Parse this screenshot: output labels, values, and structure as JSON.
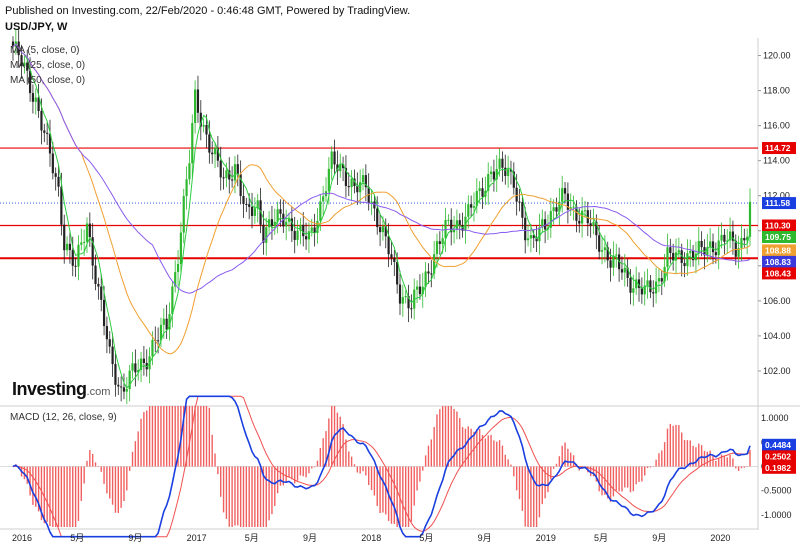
{
  "header": {
    "published": "Published on Investing.com, 22/Feb/2020 - 0:46:48 GMT, Powered by TradingView.",
    "symbol": "USD/JPY, W"
  },
  "legend": [
    {
      "label": "MA (5, close, 0)",
      "color": "#2ecc40"
    },
    {
      "label": "MA (25, close, 0)",
      "color": "#f0a030"
    },
    {
      "label": "MA (50, close, 0)",
      "color": "#8a5cf0"
    }
  ],
  "logo": {
    "brand": "Investing",
    "suffix": ".com"
  },
  "macd_label": "MACD (12, 26, close, 9)",
  "colors": {
    "up": "#2eb82e",
    "down": "#222222",
    "hline": "#e60000",
    "ma5": "#2ecc40",
    "ma25": "#f0a030",
    "ma50": "#8a5cf0",
    "macd": "#1a3fe0",
    "signal": "#f05050",
    "hist": "#f06060"
  },
  "chart_data": [
    {
      "type": "candlestick",
      "title": "USD/JPY, W",
      "ylim": [
        100,
        121
      ],
      "yticks": [
        "102.00",
        "104.00",
        "106.00",
        "108.00",
        "110.00",
        "112.00",
        "114.00",
        "116.00",
        "118.00",
        "120.00"
      ],
      "xticks": [
        "2016",
        "5月",
        "9月",
        "2017",
        "5月",
        "9月",
        "2018",
        "5月",
        "9月",
        "2019",
        "5月",
        "9月",
        "2020"
      ],
      "grid": false,
      "horizontal_lines": [
        114.72,
        110.3,
        108.43
      ],
      "price_tags": [
        {
          "text": "114.72",
          "value": 114.72,
          "color": "#e60000"
        },
        {
          "text": "111.58",
          "value": 111.58,
          "color": "#1a3fe0"
        },
        {
          "text": "110.30",
          "value": 110.3,
          "color": "#e60000"
        },
        {
          "text": "109.75",
          "value": 109.75,
          "color": "#2eb82e"
        },
        {
          "text": "108.88",
          "value": 108.88,
          "color": "#f0a030"
        },
        {
          "text": "108.83",
          "value": 108.83,
          "color": "#3a3adc"
        },
        {
          "text": "108.43",
          "value": 108.43,
          "color": "#e60000"
        }
      ],
      "close_anchors": [
        [
          0,
          120.5
        ],
        [
          4,
          119.2
        ],
        [
          8,
          117.5
        ],
        [
          12,
          114.8
        ],
        [
          16,
          112.3
        ],
        [
          18,
          109.5
        ],
        [
          22,
          107.8
        ],
        [
          26,
          110.5
        ],
        [
          30,
          106.5
        ],
        [
          34,
          102.8
        ],
        [
          38,
          100.9
        ],
        [
          42,
          101.8
        ],
        [
          46,
          102.5
        ],
        [
          50,
          103.8
        ],
        [
          54,
          104.5
        ],
        [
          58,
          108.8
        ],
        [
          60,
          111.5
        ],
        [
          62,
          114.0
        ],
        [
          64,
          117.5
        ],
        [
          66,
          116.5
        ],
        [
          70,
          114.5
        ],
        [
          74,
          112.8
        ],
        [
          78,
          113.8
        ],
        [
          82,
          110.8
        ],
        [
          86,
          111.5
        ],
        [
          88,
          110.0
        ],
        [
          92,
          110.5
        ],
        [
          96,
          110.8
        ],
        [
          100,
          109.8
        ],
        [
          104,
          109.5
        ],
        [
          108,
          111.5
        ],
        [
          112,
          113.8
        ],
        [
          116,
          113.5
        ],
        [
          120,
          112.4
        ],
        [
          124,
          112.5
        ],
        [
          128,
          110.8
        ],
        [
          132,
          108.8
        ],
        [
          136,
          106.5
        ],
        [
          140,
          105.8
        ],
        [
          144,
          106.8
        ],
        [
          148,
          108.8
        ],
        [
          152,
          110.0
        ],
        [
          156,
          110.4
        ],
        [
          160,
          111.0
        ],
        [
          164,
          112.0
        ],
        [
          168,
          113.5
        ],
        [
          172,
          113.4
        ],
        [
          176,
          113.0
        ],
        [
          178,
          111.5
        ],
        [
          180,
          109.8
        ],
        [
          182,
          109.0
        ],
        [
          186,
          110.5
        ],
        [
          190,
          111.0
        ],
        [
          194,
          112.0
        ],
        [
          198,
          111.0
        ],
        [
          202,
          110.5
        ],
        [
          206,
          109.5
        ],
        [
          210,
          108.2
        ],
        [
          214,
          107.8
        ],
        [
          218,
          107.0
        ],
        [
          222,
          106.4
        ],
        [
          226,
          107.0
        ],
        [
          230,
          108.5
        ],
        [
          234,
          108.4
        ],
        [
          238,
          108.8
        ],
        [
          242,
          108.7
        ],
        [
          246,
          109.2
        ],
        [
          250,
          109.6
        ],
        [
          254,
          108.9
        ],
        [
          256,
          109.4
        ],
        [
          258,
          110.3
        ],
        [
          259,
          111.5
        ]
      ],
      "ma_period": [
        5,
        25,
        50
      ]
    },
    {
      "type": "macd",
      "title": "MACD (12, 26, close, 9)",
      "ylim": [
        -1.25,
        1.25
      ],
      "yticks": [
        "1.0000",
        "0.5000",
        "0.0000",
        "-0.5000",
        "-1.0000"
      ],
      "price_tags": [
        {
          "text": "0.4484",
          "value": 0.4484,
          "color": "#1a3fe0"
        },
        {
          "text": "0.2502",
          "value": 0.2502,
          "color": "#e60000"
        },
        {
          "text": "0.1982",
          "value": 0.1982,
          "color": "#e60000"
        }
      ]
    }
  ]
}
